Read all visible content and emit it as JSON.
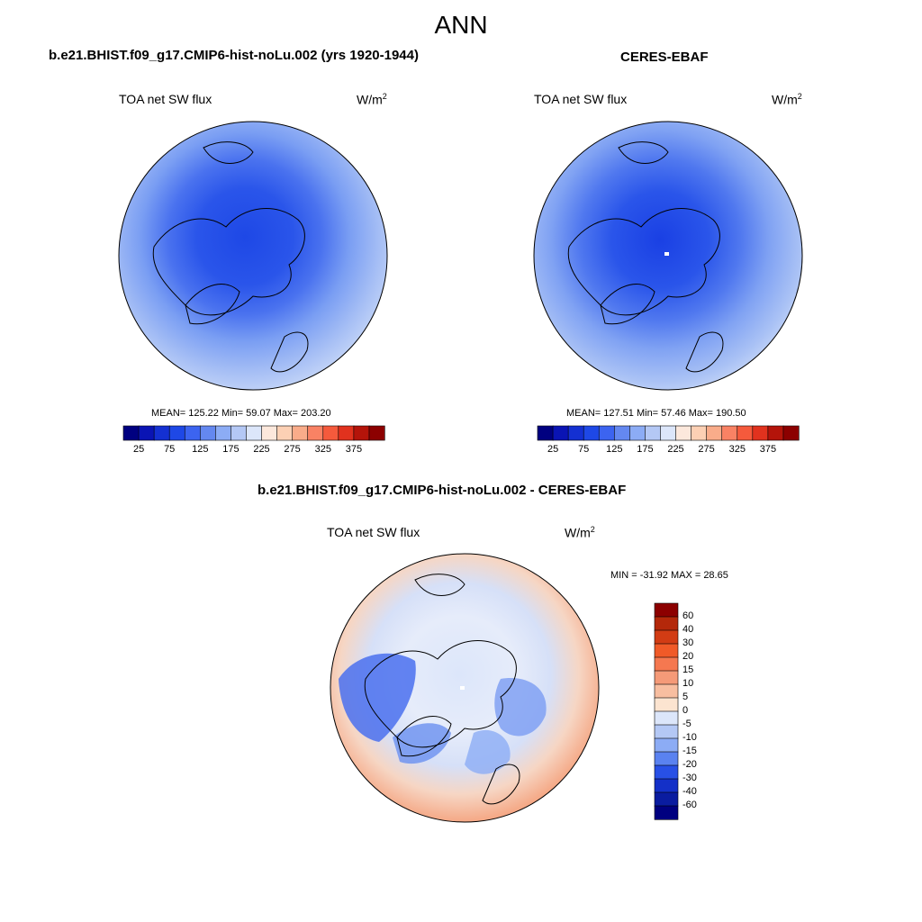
{
  "figure": {
    "season": "ANN"
  },
  "panels": [
    {
      "title": "b.e21.BHIST.f09_g17.CMIP6-hist-noLu.002 (yrs 1920-1944)",
      "variable": "TOA net SW flux",
      "units_base": "W/m",
      "units_exp": "2",
      "stats_text": "MEAN= 125.22  Min=  59.07  Max= 203.20",
      "stats": {
        "mean": 125.22,
        "min": 59.07,
        "max": 203.2
      }
    },
    {
      "title": "CERES-EBAF",
      "variable": "TOA net SW flux",
      "units_base": "W/m",
      "units_exp": "2",
      "stats_text": "MEAN= 127.51  Min=  57.46  Max= 190.50",
      "stats": {
        "mean": 127.51,
        "min": 57.46,
        "max": 190.5
      }
    },
    {
      "title": "b.e21.BHIST.f09_g17.CMIP6-hist-noLu.002 - CERES-EBAF",
      "variable": "TOA net SW flux",
      "units_base": "W/m",
      "units_exp": "2",
      "stats_text": "MIN = -31.92 MAX =  28.65",
      "stats": {
        "min": -31.92,
        "max": 28.65
      }
    }
  ],
  "colorbars": {
    "abs": {
      "labels": [
        "25",
        "75",
        "125",
        "175",
        "225",
        "275",
        "325",
        "375"
      ],
      "colors": [
        "#000080",
        "#0a14b4",
        "#1430d2",
        "#1e48e6",
        "#3c64f0",
        "#6488f0",
        "#8cacf5",
        "#b4c8f5",
        "#dce6fa",
        "#fce8dc",
        "#fcd0b4",
        "#f9ac8a",
        "#f98264",
        "#f55a3c",
        "#e1321e",
        "#b4140a",
        "#8c0000"
      ]
    },
    "diff": {
      "labels": [
        "60",
        "40",
        "30",
        "20",
        "15",
        "10",
        "5",
        "0",
        "-5",
        "-10",
        "-15",
        "-20",
        "-30",
        "-40",
        "-60"
      ],
      "colors": [
        "#8c0000",
        "#b4280a",
        "#d23c14",
        "#f05a28",
        "#f57850",
        "#f59a78",
        "#f8bea0",
        "#fce4d0",
        "#dce6fa",
        "#b4c8f5",
        "#8cacf5",
        "#5a82f0",
        "#2850e6",
        "#1430c8",
        "#0a1ca0",
        "#000080"
      ]
    }
  },
  "chart_data": [
    {
      "type": "heatmap",
      "title": "b.e21.BHIST.f09_g17.CMIP6-hist-noLu.002 (yrs 1920-1944)",
      "variable": "TOA net SW flux",
      "units": "W/m2",
      "projection": "north polar stereographic",
      "stats": {
        "mean": 125.22,
        "min": 59.07,
        "max": 203.2
      },
      "colorbar_levels": [
        25,
        75,
        125,
        175,
        225,
        275,
        325,
        375
      ]
    },
    {
      "type": "heatmap",
      "title": "CERES-EBAF",
      "variable": "TOA net SW flux",
      "units": "W/m2",
      "projection": "north polar stereographic",
      "stats": {
        "mean": 127.51,
        "min": 57.46,
        "max": 190.5
      },
      "colorbar_levels": [
        25,
        75,
        125,
        175,
        225,
        275,
        325,
        375
      ]
    },
    {
      "type": "heatmap",
      "title": "b.e21.BHIST.f09_g17.CMIP6-hist-noLu.002 - CERES-EBAF",
      "variable": "TOA net SW flux",
      "units": "W/m2",
      "projection": "north polar stereographic",
      "stats": {
        "min": -31.92,
        "max": 28.65
      },
      "colorbar_levels": [
        60,
        40,
        30,
        20,
        15,
        10,
        5,
        0,
        -5,
        -10,
        -15,
        -20,
        -30,
        -40,
        -60
      ]
    }
  ]
}
